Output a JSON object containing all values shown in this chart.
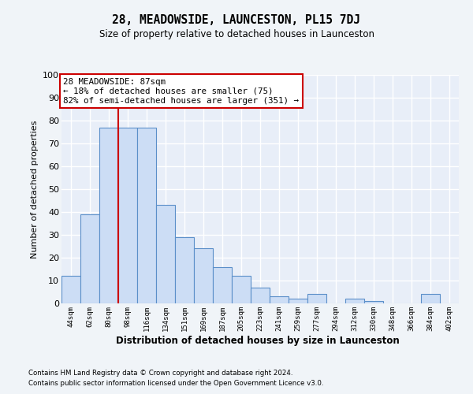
{
  "title": "28, MEADOWSIDE, LAUNCESTON, PL15 7DJ",
  "subtitle": "Size of property relative to detached houses in Launceston",
  "xlabel": "Distribution of detached houses by size in Launceston",
  "ylabel": "Number of detached properties",
  "categories": [
    "44sqm",
    "62sqm",
    "80sqm",
    "98sqm",
    "116sqm",
    "134sqm",
    "151sqm",
    "169sqm",
    "187sqm",
    "205sqm",
    "223sqm",
    "241sqm",
    "259sqm",
    "277sqm",
    "294sqm",
    "312sqm",
    "330sqm",
    "348sqm",
    "366sqm",
    "384sqm",
    "402sqm"
  ],
  "values": [
    12,
    39,
    77,
    77,
    77,
    43,
    29,
    24,
    16,
    12,
    7,
    3,
    2,
    4,
    0,
    2,
    1,
    0,
    0,
    4,
    0
  ],
  "bar_color": "#ccddf5",
  "bar_edge_color": "#5b8fc9",
  "plot_bg_color": "#e8eef8",
  "fig_bg_color": "#f0f4f8",
  "grid_color": "#ffffff",
  "red_line_x": 2.5,
  "annotation_line1": "28 MEADOWSIDE: 87sqm",
  "annotation_line2": "← 18% of detached houses are smaller (75)",
  "annotation_line3": "82% of semi-detached houses are larger (351) →",
  "annotation_box_facecolor": "#ffffff",
  "annotation_box_edgecolor": "#cc0000",
  "ylim_max": 100,
  "yticks": [
    0,
    10,
    20,
    30,
    40,
    50,
    60,
    70,
    80,
    90,
    100
  ],
  "footer1": "Contains HM Land Registry data © Crown copyright and database right 2024.",
  "footer2": "Contains public sector information licensed under the Open Government Licence v3.0."
}
